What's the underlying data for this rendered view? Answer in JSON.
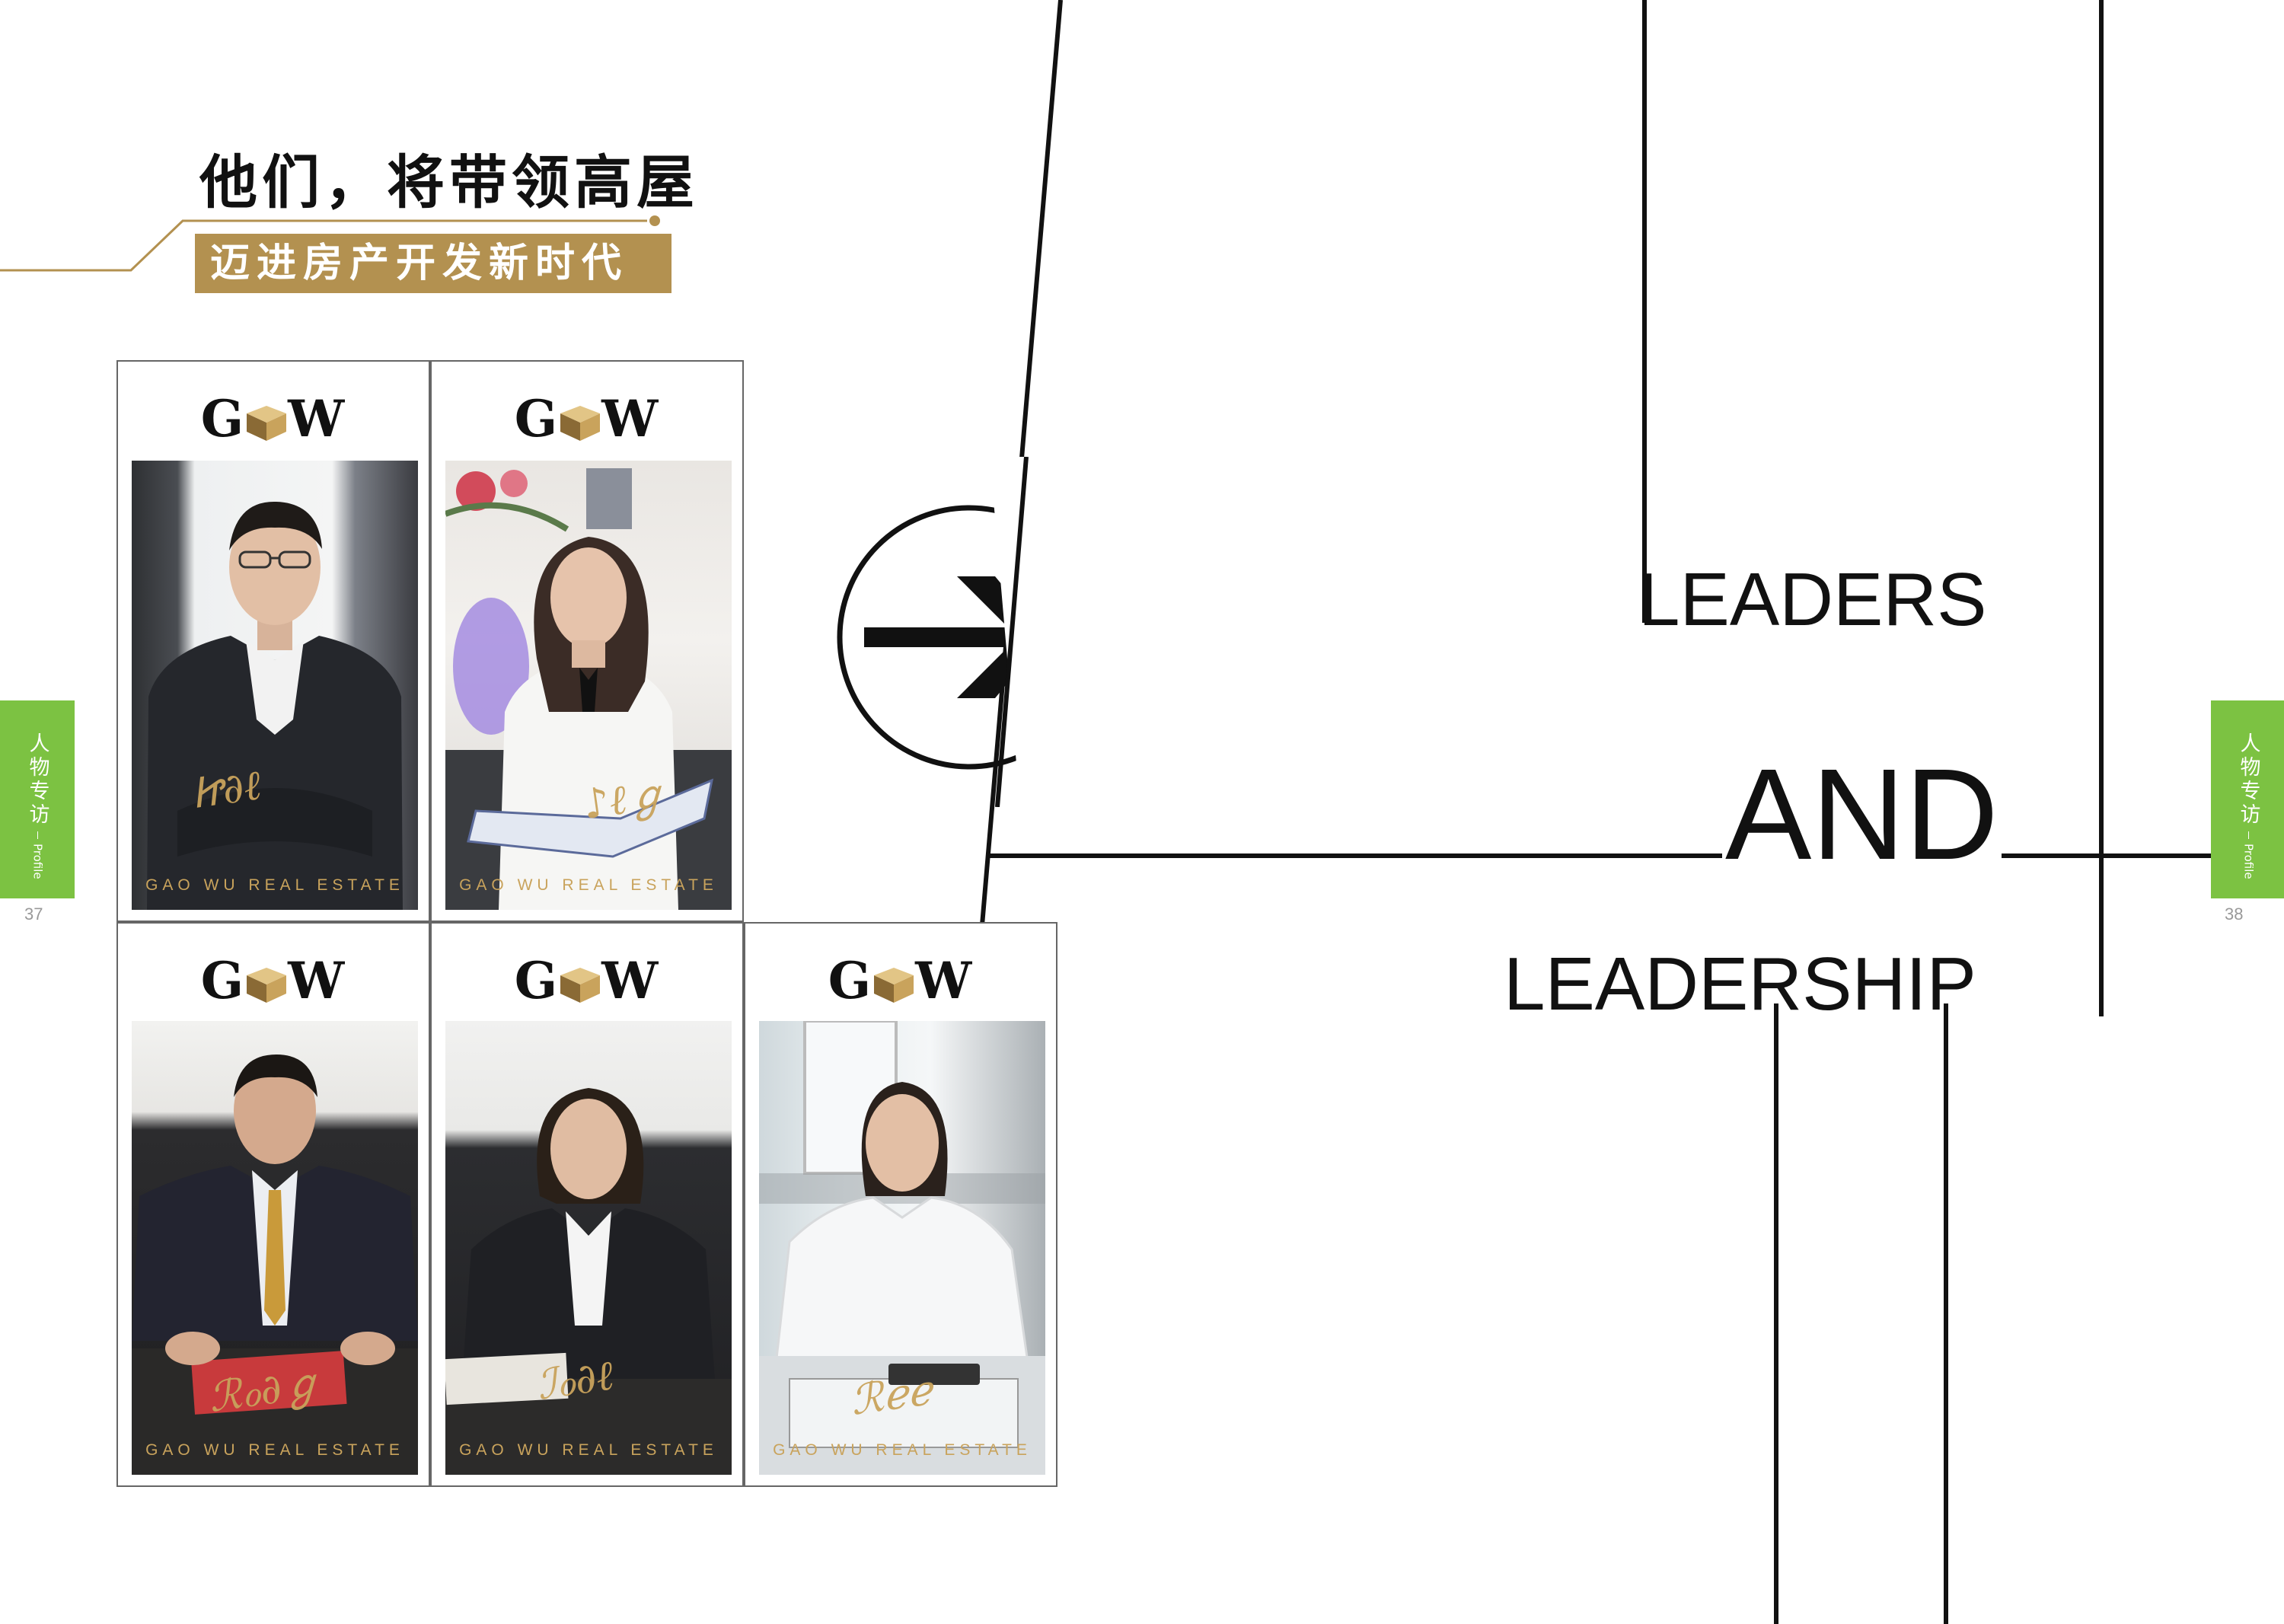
{
  "headline": "他们，将带领高屋",
  "subheadline": "迈进房产开发新时代",
  "side_tab": {
    "label_cn": "人物专访",
    "label_en": "Profile"
  },
  "page_numbers": {
    "left": "37",
    "right": "38"
  },
  "logo": {
    "g": "G",
    "w": "W"
  },
  "watermark": "GAO WU REAL ESTATE",
  "leaders_words": {
    "leaders": "LEADERS",
    "and": "AND",
    "leadership": "LEADERSHIP"
  },
  "colors": {
    "gold": "#b39150",
    "green": "#7cc242",
    "signature": "#c9a35c"
  },
  "icons": {
    "arrow": "right-arrow-in-circle-icon",
    "logo_mark": "gw-block-icon"
  }
}
